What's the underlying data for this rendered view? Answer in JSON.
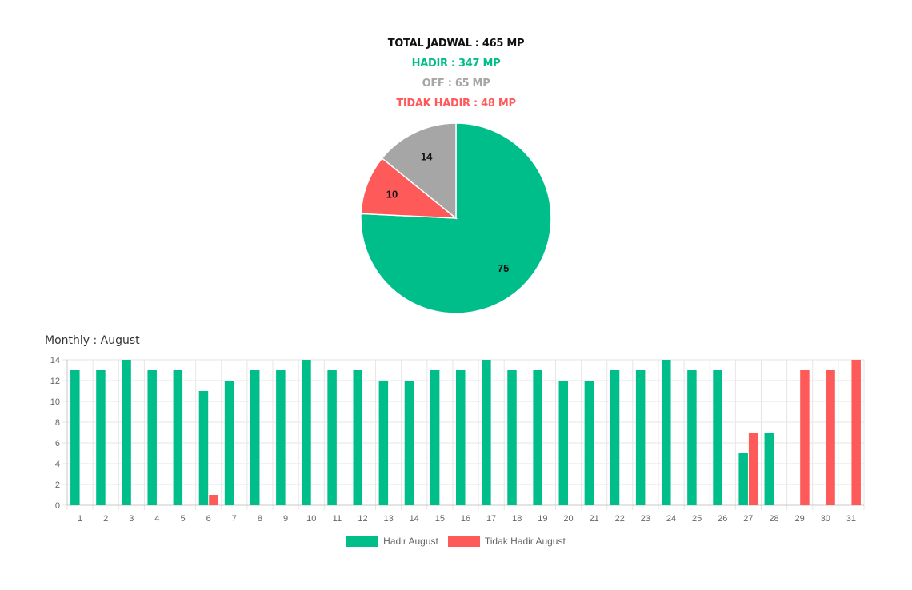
{
  "summary": {
    "total": "TOTAL JADWAL : 465 MP",
    "hadir": "HADIR : 347 MP",
    "off": "OFF : 65 MP",
    "tidak_hadir": "TIDAK HADIR : 48 MP"
  },
  "colors": {
    "hadir": "#00be8a",
    "off": "#a6a6a6",
    "tidak_hadir": "#ff5a5a",
    "total": "#111111"
  },
  "chart_data": [
    {
      "type": "pie",
      "labels": [
        "Hadir",
        "Tidak Hadir",
        "Off"
      ],
      "values": [
        75,
        10,
        14
      ],
      "data_labels": [
        "75",
        "10",
        "14"
      ],
      "colors": [
        "#00be8a",
        "#ff5a5a",
        "#a6a6a6"
      ]
    },
    {
      "type": "bar",
      "title": "Monthly : August",
      "categories": [
        "1",
        "2",
        "3",
        "4",
        "5",
        "6",
        "7",
        "8",
        "9",
        "10",
        "11",
        "12",
        "13",
        "14",
        "15",
        "16",
        "17",
        "18",
        "19",
        "20",
        "21",
        "22",
        "23",
        "24",
        "25",
        "26",
        "27",
        "28",
        "29",
        "30",
        "31"
      ],
      "series": [
        {
          "name": "Hadir August",
          "color": "#00be8a",
          "values": [
            13,
            13,
            14,
            13,
            13,
            11,
            12,
            13,
            13,
            14,
            13,
            13,
            12,
            12,
            13,
            13,
            14,
            13,
            13,
            12,
            12,
            13,
            13,
            14,
            13,
            13,
            5,
            7,
            0,
            0,
            0
          ]
        },
        {
          "name": "Tidak Hadir August",
          "color": "#ff5a5a",
          "values": [
            0,
            0,
            0,
            0,
            0,
            1,
            0,
            0,
            0,
            0,
            0,
            0,
            0,
            0,
            0,
            0,
            0,
            0,
            0,
            0,
            0,
            0,
            0,
            0,
            0,
            0,
            7,
            0,
            13,
            13,
            14
          ]
        }
      ],
      "ylim": [
        0,
        14
      ],
      "yticks": [
        0,
        2,
        4,
        6,
        8,
        10,
        12,
        14
      ],
      "grid": true,
      "legend": "bottom"
    }
  ]
}
